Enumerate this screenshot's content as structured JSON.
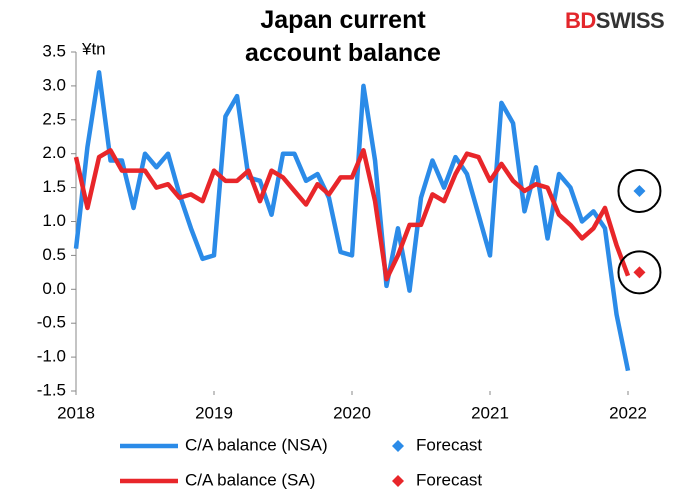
{
  "chart_data": {
    "type": "line",
    "title": "Japan current account balance",
    "logo": [
      "BD",
      "SWISS"
    ],
    "y_label": "¥tn",
    "x": [
      2018,
      2018.083,
      2018.167,
      2018.25,
      2018.333,
      2018.417,
      2018.5,
      2018.583,
      2018.667,
      2018.75,
      2018.833,
      2018.917,
      2019,
      2019.083,
      2019.167,
      2019.25,
      2019.333,
      2019.417,
      2019.5,
      2019.583,
      2019.667,
      2019.75,
      2019.833,
      2019.917,
      2020,
      2020.083,
      2020.167,
      2020.25,
      2020.333,
      2020.417,
      2020.5,
      2020.583,
      2020.667,
      2020.75,
      2020.833,
      2020.917,
      2021,
      2021.083,
      2021.167,
      2021.25,
      2021.333,
      2021.417,
      2021.5,
      2021.583,
      2021.667,
      2021.75,
      2021.833,
      2021.917,
      2022
    ],
    "series": [
      {
        "name": "C/A balance (NSA)",
        "color": "#2b8be8",
        "marker": "line",
        "values": [
          0.6,
          2.1,
          3.2,
          1.9,
          1.9,
          1.2,
          2.0,
          1.8,
          2.0,
          1.4,
          0.9,
          0.45,
          0.5,
          2.55,
          2.85,
          1.65,
          1.6,
          1.1,
          2.0,
          2.0,
          1.6,
          1.7,
          1.35,
          0.55,
          0.5,
          3.0,
          1.9,
          0.05,
          0.9,
          -0.02,
          1.35,
          1.9,
          1.5,
          1.95,
          1.7,
          1.1,
          0.5,
          2.75,
          2.45,
          1.15,
          1.8,
          0.75,
          1.7,
          1.5,
          1.0,
          1.15,
          0.9,
          -0.37,
          -1.2
        ]
      },
      {
        "name": "Forecast",
        "color": "#2b8be8",
        "marker": "diamond",
        "x": [
          2022.083
        ],
        "values": [
          1.45
        ]
      },
      {
        "name": "C/A balance (SA)",
        "color": "#e8262a",
        "marker": "line",
        "values": [
          1.95,
          1.2,
          1.95,
          2.05,
          1.75,
          1.75,
          1.75,
          1.5,
          1.55,
          1.35,
          1.4,
          1.3,
          1.75,
          1.6,
          1.6,
          1.75,
          1.3,
          1.75,
          1.65,
          1.45,
          1.25,
          1.55,
          1.4,
          1.65,
          1.65,
          2.05,
          1.3,
          0.15,
          0.5,
          0.95,
          0.95,
          1.4,
          1.3,
          1.7,
          2.0,
          1.95,
          1.6,
          1.85,
          1.6,
          1.45,
          1.55,
          1.5,
          1.1,
          0.95,
          0.75,
          0.9,
          1.2,
          0.65,
          0.2
        ]
      },
      {
        "name": "Forecast",
        "color": "#e8262a",
        "marker": "diamond",
        "x": [
          2022.083
        ],
        "values": [
          0.25
        ]
      }
    ],
    "xlim": [
      2018,
      2022.25
    ],
    "xticks": [
      2018,
      2019,
      2020,
      2021,
      2022
    ],
    "ylim": [
      -1.5,
      3.5
    ],
    "yticks": [
      {
        "value": -1.5,
        "label": "-1.5"
      },
      {
        "value": -1,
        "label": "-1.0"
      },
      {
        "value": -0.5,
        "label": "-0.5"
      },
      {
        "value": 0,
        "label": "0.0"
      },
      {
        "value": 0.5,
        "label": "0.5"
      },
      {
        "value": 1,
        "label": "1.0"
      },
      {
        "value": 1.5,
        "label": "1.5"
      },
      {
        "value": 2,
        "label": "2.0"
      },
      {
        "value": 2.5,
        "label": "2.5"
      },
      {
        "value": 3,
        "label": "3.0"
      },
      {
        "value": 3.5,
        "label": "3.5"
      }
    ],
    "grid": false,
    "legend": "bottom"
  }
}
